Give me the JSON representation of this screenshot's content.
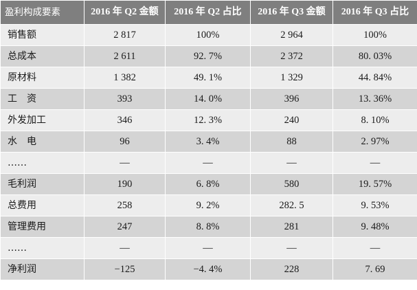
{
  "table": {
    "headers": [
      "盈利构成要素",
      "2016 年 Q2 金额",
      "2016 年 Q2 占比",
      "2016 年 Q3 金额",
      "2016 年 Q3 占比"
    ],
    "rows": [
      [
        "销售额",
        "2 817",
        "100%",
        "2 964",
        "100%"
      ],
      [
        "总成本",
        "2 611",
        "92. 7%",
        "2 372",
        "80. 03%"
      ],
      [
        "原材料",
        "1 382",
        "49. 1%",
        "1 329",
        "44. 84%"
      ],
      [
        "工　资",
        "393",
        "14. 0%",
        "396",
        "13. 36%"
      ],
      [
        "外发加工",
        "346",
        "12. 3%",
        "240",
        "8. 10%"
      ],
      [
        "水　电",
        "96",
        "3. 4%",
        "88",
        "2. 97%"
      ],
      [
        "……",
        "—",
        "—",
        "—",
        "—"
      ],
      [
        "毛利润",
        "190",
        "6. 8%",
        "580",
        "19. 57%"
      ],
      [
        "总费用",
        "258",
        "9. 2%",
        "282. 5",
        "9. 53%"
      ],
      [
        "管理费用",
        "247",
        "8. 8%",
        "281",
        "9. 48%"
      ],
      [
        "……",
        "—",
        "—",
        "—",
        "—"
      ],
      [
        "净利润",
        "−125",
        "−4. 4%",
        "228",
        "7. 69"
      ]
    ]
  },
  "colors": {
    "header_background": "#7f7f7f",
    "header_text": "#ffffff",
    "row_light": "#ededed",
    "row_dark": "#d4d4d4"
  }
}
